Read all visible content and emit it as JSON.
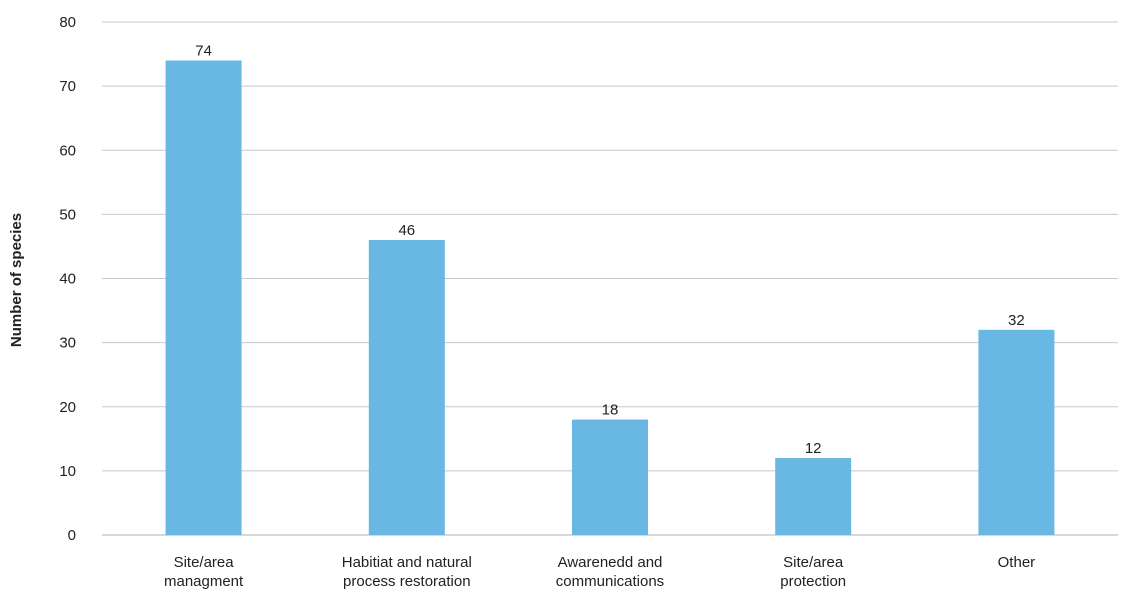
{
  "chart_data": {
    "type": "bar",
    "title": "",
    "xlabel": "",
    "ylabel": "Number of species",
    "ylim": [
      0,
      80
    ],
    "yticks": [
      0,
      10,
      20,
      30,
      40,
      50,
      60,
      70,
      80
    ],
    "grid": true,
    "categories": [
      [
        "Site/area",
        "managment"
      ],
      [
        "Habitiat and natural",
        "process restoration"
      ],
      [
        "Awarenedd and",
        "communications"
      ],
      [
        "Site/area",
        "protection"
      ],
      [
        "Other"
      ]
    ],
    "values": [
      74,
      46,
      18,
      12,
      32
    ],
    "data_labels": [
      "74",
      "46",
      "18",
      "12",
      "32"
    ],
    "bar_color": "#69b8e3"
  }
}
